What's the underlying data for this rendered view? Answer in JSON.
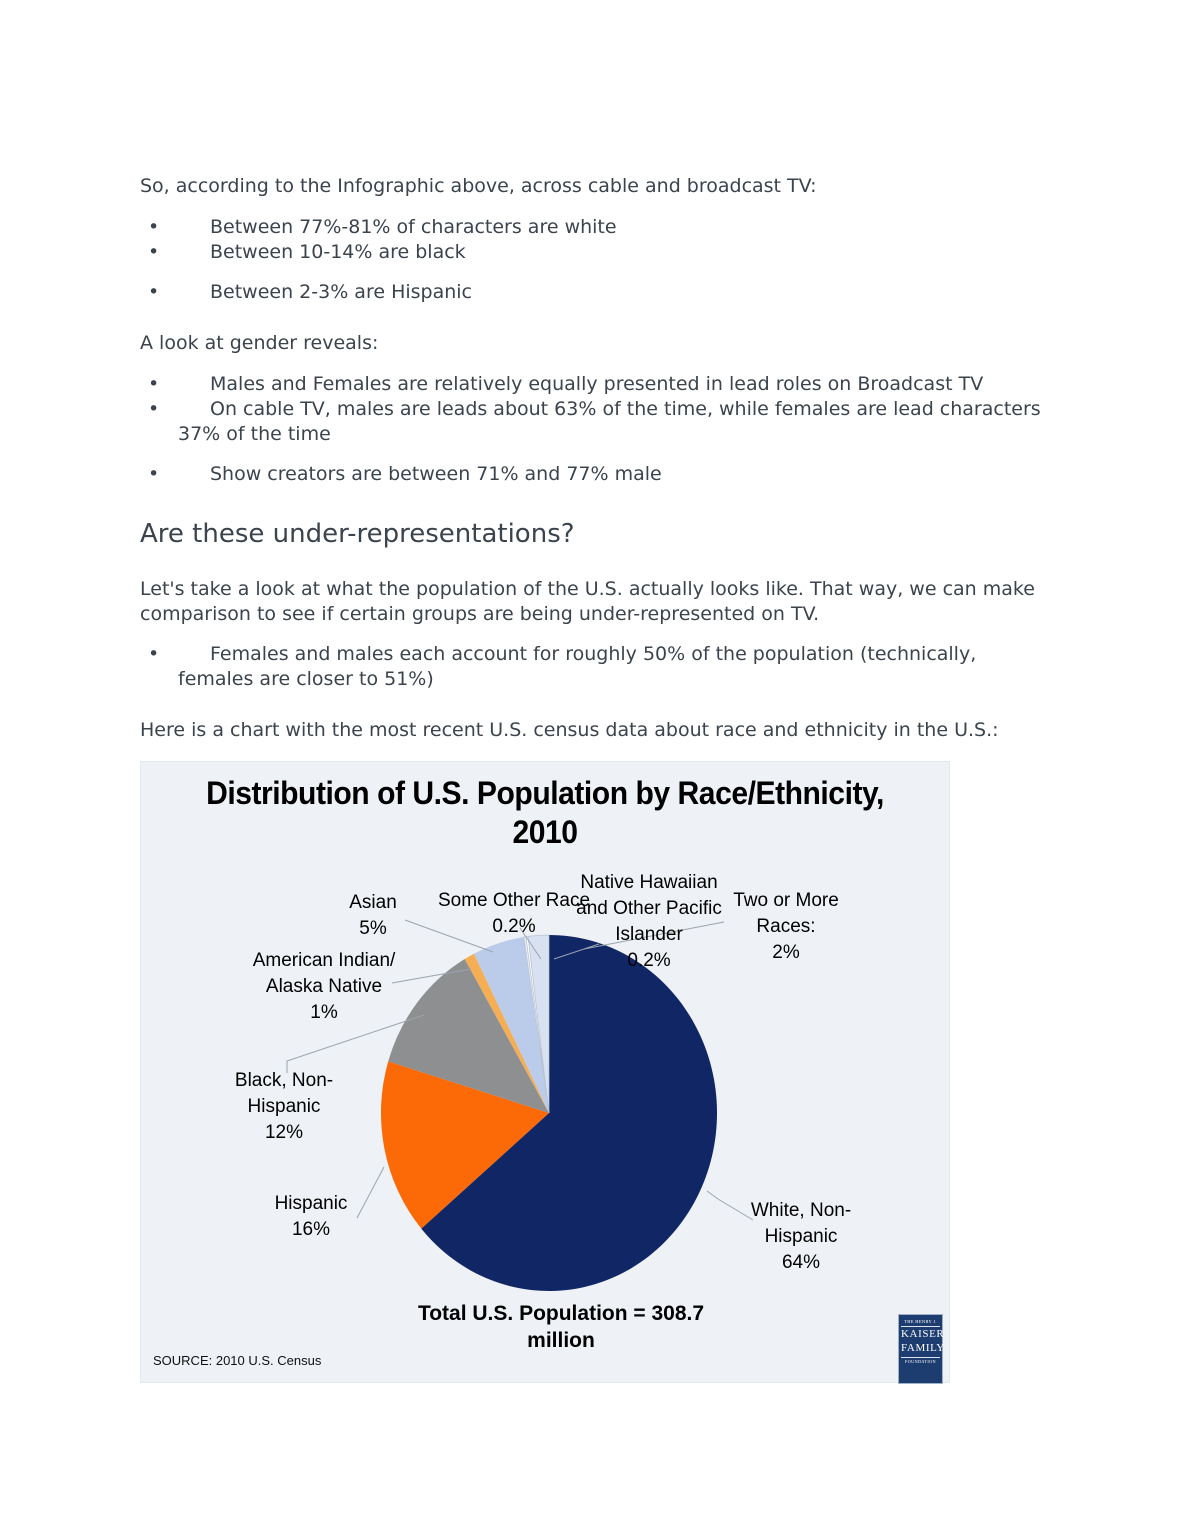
{
  "page": {
    "intro": "So, according to the Infographic above, across cable and broadcast TV:",
    "bullets_tv": [
      "Between 77%-81% of characters are white",
      "Between 10-14% are black"
    ],
    "bullet_tv_hispanic": "Between 2-3% are Hispanic",
    "gender_intro": "A look at gender reveals:",
    "bullets_gender": [
      "Males and Females are relatively equally presented in lead roles on Broadcast TV",
      "On cable TV, males are leads about 63% of the time, while females are lead characters 37% of the time"
    ],
    "bullet_gender_creators": "Show creators are between 71% and 77% male",
    "heading": "Are these under-representations?",
    "para1": "Let's take a look at what the population of the U.S. actually looks like. That way, we can make comparison to see if certain groups are being under-represented on TV.",
    "bullet_population": "Females and males each account for roughly 50% of the population (technically, females are closer to 51%)",
    "para2": "Here is a chart with the most recent U.S. census data about race and ethnicity in the U.S.:"
  },
  "chart_data": {
    "type": "pie",
    "title": "Distribution of U.S. Population by Race/Ethnicity, 2010",
    "title_lines": "Distribution of U.S. Population by Race/Ethnicity,\n2010",
    "start_angle_deg": 0,
    "direction": "clockwise",
    "legend_position": "callout-labels",
    "slices": [
      {
        "label": "White, Non-Hispanic",
        "value": 64,
        "pct_label": "64%",
        "color": "#112765",
        "callout": "White, Non-\nHispanic\n64%"
      },
      {
        "label": "Hispanic",
        "value": 16,
        "pct_label": "16%",
        "color": "#fb6a07",
        "callout": "Hispanic\n16%"
      },
      {
        "label": "Black, Non-Hispanic",
        "value": 12,
        "pct_label": "12%",
        "color": "#8e8f91",
        "callout": "Black, Non-\nHispanic\n12%"
      },
      {
        "label": "American Indian/Alaska Native",
        "value": 1,
        "pct_label": "1%",
        "color": "#f5ae53",
        "callout": "American Indian/\nAlaska Native\n1%"
      },
      {
        "label": "Asian",
        "value": 5,
        "pct_label": "5%",
        "color": "#bacce9",
        "callout": "Asian\n5%"
      },
      {
        "label": "Some Other Race",
        "value": 0.2,
        "pct_label": "0.2%",
        "color": "#e9eff8",
        "callout": "Some Other Race\n0.2%"
      },
      {
        "label": "Native Hawaiian and Other Pacific Islander",
        "value": 0.2,
        "pct_label": "0.2%",
        "color": "#fdfdfe",
        "callout": "Native Hawaiian\nand Other Pacific\nIslander\n0.2%"
      },
      {
        "label": "Two or More Races",
        "value": 2,
        "pct_label": "2%",
        "color": "#d8e1f1",
        "callout": "Two or More\nRaces:\n2%"
      }
    ],
    "total_note": "Total U.S. Population = 308.7\nmillion",
    "source": "SOURCE: 2010 U.S. Census",
    "logo": {
      "line1": "THE HENRY J.",
      "line2": "KAISER",
      "line3": "FAMILY",
      "line4": "FOUNDATION"
    }
  }
}
